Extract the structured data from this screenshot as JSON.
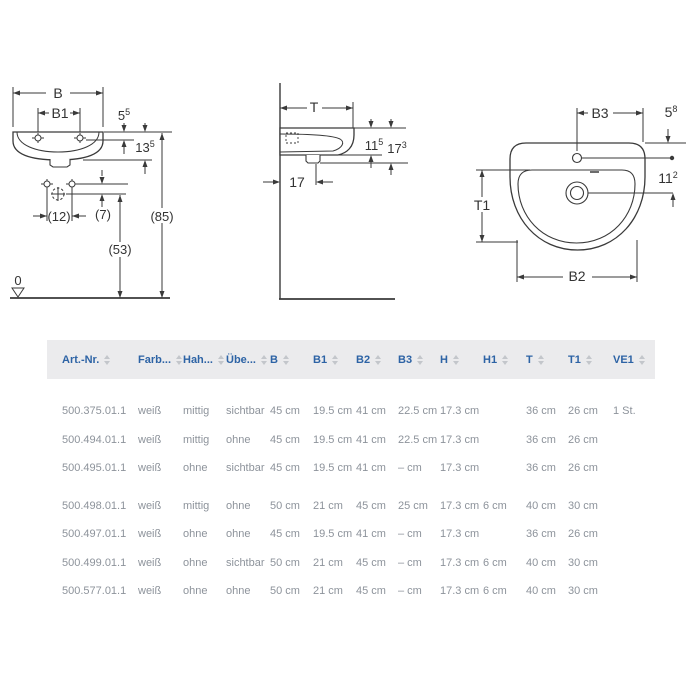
{
  "diagrams": {
    "front_view": {
      "b": "B",
      "b1": "B1",
      "dim_5_5": {
        "base": "5",
        "sup": "5"
      },
      "dim_13_5": {
        "base": "13",
        "sup": "5"
      },
      "dim_12": "(12)",
      "dim_7": "(7)",
      "dim_53": "(53)",
      "dim_85": "(85)",
      "datum_zero": "0"
    },
    "side_view": {
      "t": "T",
      "dim_11_5": {
        "base": "11",
        "sup": "5"
      },
      "dim_17_3": {
        "base": "17",
        "sup": "3"
      },
      "dim_17": "17"
    },
    "top_view": {
      "b3": "B3",
      "dim_5_8": {
        "base": "5",
        "sup": "8"
      },
      "dim_11_2": {
        "base": "11",
        "sup": "2"
      },
      "t1": "T1",
      "b2": "B2"
    }
  },
  "table": {
    "colors": {
      "header_text": "#2d63a5",
      "header_bg": "#ebebed",
      "cell_text": "#8d939b",
      "sort_icon": "#c3c6cb"
    },
    "columns": [
      {
        "label": "Art.-Nr."
      },
      {
        "label": "Farb..."
      },
      {
        "label": "Hah..."
      },
      {
        "label": "Übe..."
      },
      {
        "label": "B"
      },
      {
        "label": "B1"
      },
      {
        "label": "B2"
      },
      {
        "label": "B3"
      },
      {
        "label": "H"
      },
      {
        "label": "H1"
      },
      {
        "label": "T"
      },
      {
        "label": "T1"
      },
      {
        "label": "VE1"
      }
    ],
    "groups": [
      {
        "rows": [
          [
            "500.375.01.1",
            "weiß",
            "mittig",
            "sichtbar",
            "45 cm",
            "19.5 cm",
            "41 cm",
            "22.5 cm",
            "17.3 cm",
            "",
            "36 cm",
            "26 cm",
            "1 St."
          ],
          [
            "500.494.01.1",
            "weiß",
            "mittig",
            "ohne",
            "45 cm",
            "19.5 cm",
            "41 cm",
            "22.5 cm",
            "17.3 cm",
            "",
            "36 cm",
            "26 cm",
            ""
          ],
          [
            "500.495.01.1",
            "weiß",
            "ohne",
            "sichtbar",
            "45 cm",
            "19.5 cm",
            "41 cm",
            "– cm",
            "17.3 cm",
            "",
            "36 cm",
            "26 cm",
            ""
          ]
        ]
      },
      {
        "rows": [
          [
            "500.498.01.1",
            "weiß",
            "mittig",
            "ohne",
            "50 cm",
            "21 cm",
            "45 cm",
            "25 cm",
            "17.3 cm",
            "6 cm",
            "40 cm",
            "30 cm",
            ""
          ],
          [
            "500.497.01.1",
            "weiß",
            "ohne",
            "ohne",
            "45 cm",
            "19.5 cm",
            "41 cm",
            "– cm",
            "17.3 cm",
            "",
            "36 cm",
            "26 cm",
            ""
          ],
          [
            "500.499.01.1",
            "weiß",
            "ohne",
            "sichtbar",
            "50 cm",
            "21 cm",
            "45 cm",
            "– cm",
            "17.3 cm",
            "6 cm",
            "40 cm",
            "30 cm",
            ""
          ],
          [
            "500.577.01.1",
            "weiß",
            "ohne",
            "ohne",
            "50 cm",
            "21 cm",
            "45 cm",
            "– cm",
            "17.3 cm",
            "6 cm",
            "40 cm",
            "30 cm",
            ""
          ]
        ]
      }
    ]
  }
}
